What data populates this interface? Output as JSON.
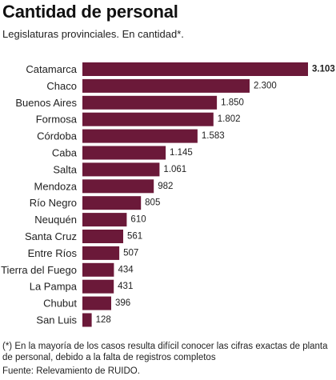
{
  "header": {
    "title": "Cantidad de personal",
    "subtitle": "Legislaturas provinciales. En cantidad*."
  },
  "chart_data": {
    "type": "bar",
    "orientation": "horizontal",
    "title": "Cantidad de personal",
    "subtitle": "Legislaturas provinciales. En cantidad*.",
    "categories": [
      "Catamarca",
      "Chaco",
      "Buenos Aires",
      "Formosa",
      "Córdoba",
      "Caba",
      "Salta",
      "Mendoza",
      "Río Negro",
      "Neuquén",
      "Santa Cruz",
      "Entre Ríos",
      "Tierra del Fuego",
      "La Pampa",
      "Chubut",
      "San Luis"
    ],
    "values": [
      3103,
      2300,
      1850,
      1802,
      1583,
      1145,
      1061,
      982,
      805,
      610,
      561,
      507,
      434,
      431,
      396,
      128
    ],
    "value_labels": [
      "3.103",
      "2.300",
      "1.850",
      "1.802",
      "1.583",
      "1.145",
      "1.061",
      "982",
      "805",
      "610",
      "561",
      "507",
      "434",
      "431",
      "396",
      "128"
    ],
    "highlight_index": 0,
    "bar_color": "#6b1939",
    "xlim": [
      0,
      3103
    ],
    "grid": false,
    "legend": "none"
  },
  "footer": {
    "note": "(*) En la mayoría de los casos resulta difícil conocer las cifras exactas de planta de personal, debido a la falta de registros completos",
    "source": "Fuente: Relevamiento de RUIDO."
  }
}
